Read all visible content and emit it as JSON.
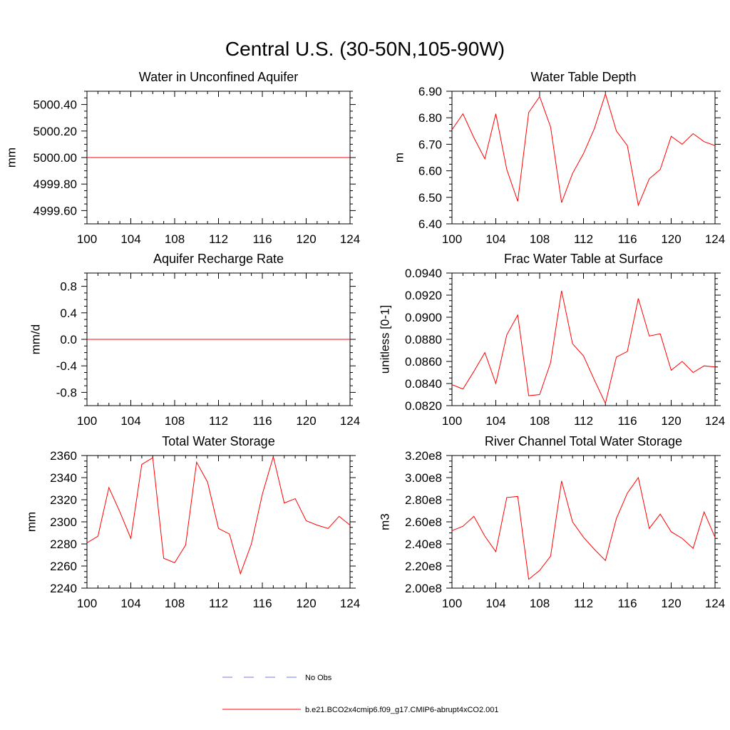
{
  "title": "Central U.S. (30-50N,105-90W)",
  "colors": {
    "model": "#ff0000",
    "obs": "#7777ee",
    "axis": "#000000"
  },
  "legend": {
    "obs_label": "No Obs",
    "model_label": "b.e21.BCO2x4cmip6.f09_g17.CMIP6-abrupt4xCO2.001"
  },
  "chart_data": [
    {
      "id": "wa",
      "type": "line",
      "title": "Water in Unconfined Aquifer",
      "ylabel": "mm",
      "xlim": [
        100,
        124
      ],
      "xticks": [
        100,
        104,
        108,
        112,
        116,
        120,
        124
      ],
      "xtick_labels": [
        "100",
        "104",
        "108",
        "112",
        "116",
        "120",
        "124"
      ],
      "ylim": [
        4999.5,
        5000.5
      ],
      "yticks": [
        4999.6,
        4999.8,
        5000.0,
        5000.2,
        5000.4
      ],
      "ytick_labels": [
        "4999.60",
        "4999.80",
        "5000.00",
        "5000.20",
        "5000.40"
      ],
      "yminor": [
        4999.5,
        4999.55,
        4999.65,
        4999.7,
        4999.75,
        4999.85,
        4999.9,
        4999.95,
        5000.05,
        5000.1,
        5000.15,
        5000.25,
        5000.3,
        5000.35,
        5000.45,
        5000.5
      ],
      "x": [
        100,
        101,
        102,
        103,
        104,
        105,
        106,
        107,
        108,
        109,
        110,
        111,
        112,
        113,
        114,
        115,
        116,
        117,
        118,
        119,
        120,
        121,
        122,
        123,
        124
      ],
      "series": [
        {
          "name": "b.e21.BCO2x4cmip6.f09_g17.CMIP6-abrupt4xCO2.001",
          "values": [
            5000,
            5000,
            5000,
            5000,
            5000,
            5000,
            5000,
            5000,
            5000,
            5000,
            5000,
            5000,
            5000,
            5000,
            5000,
            5000,
            5000,
            5000,
            5000,
            5000,
            5000,
            5000,
            5000,
            5000,
            5000
          ]
        }
      ]
    },
    {
      "id": "wt",
      "type": "line",
      "title": "Water Table Depth",
      "ylabel": "m",
      "xlim": [
        100,
        124
      ],
      "xticks": [
        100,
        104,
        108,
        112,
        116,
        120,
        124
      ],
      "xtick_labels": [
        "100",
        "104",
        "108",
        "112",
        "116",
        "120",
        "124"
      ],
      "ylim": [
        6.4,
        6.9
      ],
      "yticks": [
        6.4,
        6.5,
        6.6,
        6.7,
        6.8,
        6.9
      ],
      "ytick_labels": [
        "6.40",
        "6.50",
        "6.60",
        "6.70",
        "6.80",
        "6.90"
      ],
      "yminor": [
        6.425,
        6.45,
        6.475,
        6.525,
        6.55,
        6.575,
        6.625,
        6.65,
        6.675,
        6.725,
        6.75,
        6.775,
        6.825,
        6.85,
        6.875
      ],
      "x": [
        100,
        101,
        102,
        103,
        104,
        105,
        106,
        107,
        108,
        109,
        110,
        111,
        112,
        113,
        114,
        115,
        116,
        117,
        118,
        119,
        120,
        121,
        122,
        123,
        124
      ],
      "series": [
        {
          "name": "b.e21.BCO2x4cmip6.f09_g17.CMIP6-abrupt4xCO2.001",
          "values": [
            6.755,
            6.815,
            6.725,
            6.645,
            6.815,
            6.605,
            6.485,
            6.82,
            6.88,
            6.765,
            6.48,
            6.59,
            6.665,
            6.76,
            6.89,
            6.75,
            6.695,
            6.47,
            6.57,
            6.605,
            6.73,
            6.7,
            6.74,
            6.71,
            6.695
          ]
        }
      ]
    },
    {
      "id": "ar",
      "type": "line",
      "title": "Aquifer Recharge Rate",
      "ylabel": "mm/d",
      "xlim": [
        100,
        124
      ],
      "xticks": [
        100,
        104,
        108,
        112,
        116,
        120,
        124
      ],
      "xtick_labels": [
        "100",
        "104",
        "108",
        "112",
        "116",
        "120",
        "124"
      ],
      "ylim": [
        -1.0,
        1.0
      ],
      "yticks": [
        -0.8,
        -0.4,
        0.0,
        0.4,
        0.8
      ],
      "ytick_labels": [
        "-0.8",
        "-0.4",
        "0.0",
        "0.4",
        "0.8"
      ],
      "yminor": [
        -1.0,
        -0.9,
        -0.7,
        -0.6,
        -0.5,
        -0.3,
        -0.2,
        -0.1,
        0.1,
        0.2,
        0.3,
        0.5,
        0.6,
        0.7,
        0.9,
        1.0
      ],
      "x": [
        100,
        101,
        102,
        103,
        104,
        105,
        106,
        107,
        108,
        109,
        110,
        111,
        112,
        113,
        114,
        115,
        116,
        117,
        118,
        119,
        120,
        121,
        122,
        123,
        124
      ],
      "series": [
        {
          "name": "b.e21.BCO2x4cmip6.f09_g17.CMIP6-abrupt4xCO2.001",
          "values": [
            0,
            0,
            0,
            0,
            0,
            0,
            0,
            0,
            0,
            0,
            0,
            0,
            0,
            0,
            0,
            0,
            0,
            0,
            0,
            0,
            0,
            0,
            0,
            0,
            0
          ]
        }
      ]
    },
    {
      "id": "fw",
      "type": "line",
      "title": "Frac Water Table at Surface",
      "ylabel": "unitless [0-1]",
      "xlim": [
        100,
        124
      ],
      "xticks": [
        100,
        104,
        108,
        112,
        116,
        120,
        124
      ],
      "xtick_labels": [
        "100",
        "104",
        "108",
        "112",
        "116",
        "120",
        "124"
      ],
      "ylim": [
        0.082,
        0.094
      ],
      "yticks": [
        0.082,
        0.084,
        0.086,
        0.088,
        0.09,
        0.092,
        0.094
      ],
      "ytick_labels": [
        "0.0820",
        "0.0840",
        "0.0860",
        "0.0880",
        "0.0900",
        "0.0920",
        "0.0940"
      ],
      "yminor": [
        0.0825,
        0.083,
        0.0835,
        0.0845,
        0.085,
        0.0855,
        0.0865,
        0.087,
        0.0875,
        0.0885,
        0.089,
        0.0895,
        0.0905,
        0.091,
        0.0915,
        0.0925,
        0.093,
        0.0935
      ],
      "x": [
        100,
        101,
        102,
        103,
        104,
        105,
        106,
        107,
        108,
        109,
        110,
        111,
        112,
        113,
        114,
        115,
        116,
        117,
        118,
        119,
        120,
        121,
        122,
        123,
        124
      ],
      "series": [
        {
          "name": "b.e21.BCO2x4cmip6.f09_g17.CMIP6-abrupt4xCO2.001",
          "values": [
            0.0839,
            0.0835,
            0.0851,
            0.0868,
            0.084,
            0.0884,
            0.0902,
            0.0829,
            0.083,
            0.0859,
            0.0924,
            0.0876,
            0.0865,
            0.0843,
            0.0822,
            0.0864,
            0.0869,
            0.0917,
            0.0883,
            0.0885,
            0.0852,
            0.086,
            0.085,
            0.0856,
            0.0855
          ]
        }
      ]
    },
    {
      "id": "tws",
      "type": "line",
      "title": "Total Water Storage",
      "ylabel": "mm",
      "xlim": [
        100,
        124
      ],
      "xticks": [
        100,
        104,
        108,
        112,
        116,
        120,
        124
      ],
      "xtick_labels": [
        "100",
        "104",
        "108",
        "112",
        "116",
        "120",
        "124"
      ],
      "ylim": [
        2240,
        2360
      ],
      "yticks": [
        2240,
        2260,
        2280,
        2300,
        2320,
        2340,
        2360
      ],
      "ytick_labels": [
        "2240",
        "2260",
        "2280",
        "2300",
        "2320",
        "2340",
        "2360"
      ],
      "yminor": [
        2245,
        2250,
        2255,
        2265,
        2270,
        2275,
        2285,
        2290,
        2295,
        2305,
        2310,
        2315,
        2325,
        2330,
        2335,
        2345,
        2350,
        2355
      ],
      "x": [
        100,
        101,
        102,
        103,
        104,
        105,
        106,
        107,
        108,
        109,
        110,
        111,
        112,
        113,
        114,
        115,
        116,
        117,
        118,
        119,
        120,
        121,
        122,
        123,
        124
      ],
      "series": [
        {
          "name": "b.e21.BCO2x4cmip6.f09_g17.CMIP6-abrupt4xCO2.001",
          "values": [
            2281,
            2287,
            2331,
            2309,
            2285,
            2352,
            2358,
            2267,
            2263,
            2279,
            2354,
            2336,
            2294,
            2289,
            2253,
            2280,
            2325,
            2359,
            2317,
            2321,
            2301,
            2297,
            2294,
            2305,
            2297
          ]
        }
      ]
    },
    {
      "id": "rc",
      "type": "line",
      "title": "River Channel Total Water Storage",
      "ylabel": "m3",
      "xlim": [
        100,
        124
      ],
      "xticks": [
        100,
        104,
        108,
        112,
        116,
        120,
        124
      ],
      "xtick_labels": [
        "100",
        "104",
        "108",
        "112",
        "116",
        "120",
        "124"
      ],
      "ylim": [
        200000000.0,
        320000000.0
      ],
      "yticks": [
        200000000.0,
        220000000.0,
        240000000.0,
        260000000.0,
        280000000.0,
        300000000.0,
        320000000.0
      ],
      "ytick_labels": [
        "2.00e8",
        "2.20e8",
        "2.40e8",
        "2.60e8",
        "2.80e8",
        "3.00e8",
        "3.20e8"
      ],
      "yminor": [
        205000000.0,
        210000000.0,
        215000000.0,
        225000000.0,
        230000000.0,
        235000000.0,
        245000000.0,
        250000000.0,
        255000000.0,
        265000000.0,
        270000000.0,
        275000000.0,
        285000000.0,
        290000000.0,
        295000000.0,
        305000000.0,
        310000000.0,
        315000000.0
      ],
      "x": [
        100,
        101,
        102,
        103,
        104,
        105,
        106,
        107,
        108,
        109,
        110,
        111,
        112,
        113,
        114,
        115,
        116,
        117,
        118,
        119,
        120,
        121,
        122,
        123,
        124
      ],
      "series": [
        {
          "name": "b.e21.BCO2x4cmip6.f09_g17.CMIP6-abrupt4xCO2.001",
          "values": [
            252000000.0,
            256000000.0,
            265000000.0,
            247000000.0,
            233000000.0,
            282000000.0,
            283000000.0,
            208000000.0,
            216000000.0,
            229000000.0,
            297000000.0,
            260000000.0,
            246000000.0,
            235000000.0,
            225000000.0,
            263000000.0,
            286000000.0,
            300000000.0,
            254000000.0,
            267000000.0,
            251000000.0,
            245000000.0,
            236000000.0,
            269000000.0,
            246000000.0
          ]
        }
      ]
    }
  ]
}
